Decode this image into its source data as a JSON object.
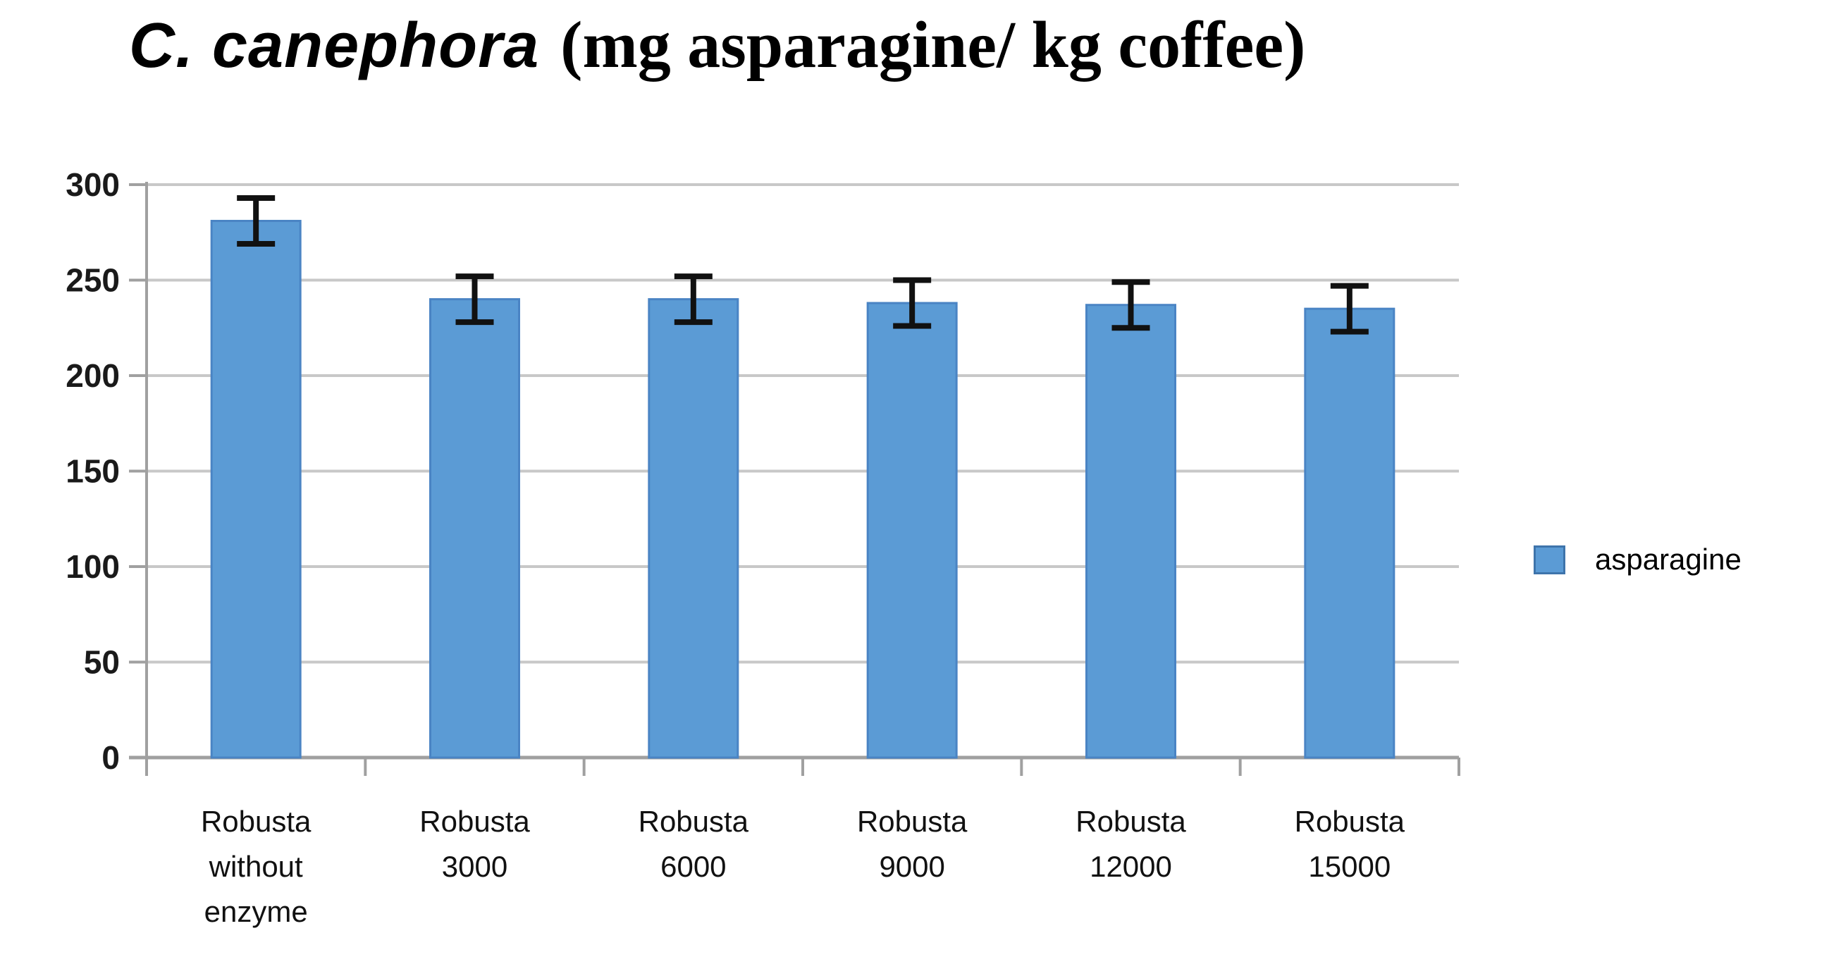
{
  "title": {
    "species": "C. canephora",
    "units": "(mg asparagine/ kg coffee)"
  },
  "legend": {
    "label": "asparagine",
    "swatch_color": "#5B9BD5"
  },
  "chart_data": {
    "type": "bar",
    "title": "C. canephora (mg asparagine/ kg coffee)",
    "categories": [
      "Robusta\nwithout\nenzyme",
      "Robusta\n3000",
      "Robusta\n6000",
      "Robusta\n9000",
      "Robusta\n12000",
      "Robusta\n15000"
    ],
    "series": [
      {
        "name": "asparagine",
        "values": [
          281,
          240,
          240,
          238,
          237,
          235
        ],
        "error_plus": [
          12,
          12,
          12,
          12,
          12,
          12
        ],
        "error_minus": [
          12,
          12,
          12,
          12,
          12,
          12
        ],
        "color": "#5B9BD5"
      }
    ],
    "xlabel": "",
    "ylabel": "",
    "ylim": [
      0,
      300
    ],
    "yticks": [
      0,
      50,
      100,
      150,
      200,
      250,
      300
    ],
    "grid": true,
    "legend_position": "right"
  },
  "colors": {
    "bar_fill": "#5B9BD5",
    "bar_border": "#4a84c4",
    "gridline": "#c8c8c8",
    "axis": "#a0a0a0",
    "error_bar": "#111111",
    "tick_label": "#1a1a1a",
    "category_label": "#111111"
  }
}
